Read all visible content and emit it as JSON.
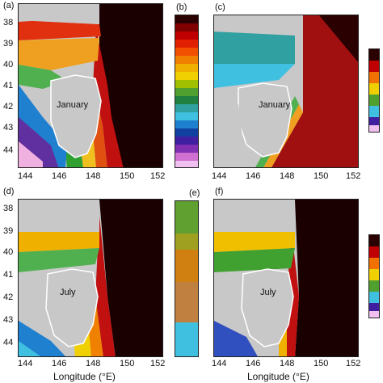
{
  "panels": {
    "a": {
      "tag": "(a)",
      "month": "January"
    },
    "b": {
      "tag": "(b)"
    },
    "c": {
      "tag": "(c)",
      "month": "January"
    },
    "d": {
      "tag": "(d)",
      "month": "July"
    },
    "e": {
      "tag": "(e)"
    },
    "f": {
      "tag": "(f)",
      "month": "July"
    }
  },
  "y_ticks": [
    "38",
    "39",
    "40",
    "41",
    "42",
    "43",
    "44"
  ],
  "x_ticks": [
    "144",
    "146",
    "148",
    "150",
    "152"
  ],
  "x_axis_title": "Longitude (°E)",
  "colors": {
    "land": "#c8c8c8",
    "frame": "#222222"
  }
}
